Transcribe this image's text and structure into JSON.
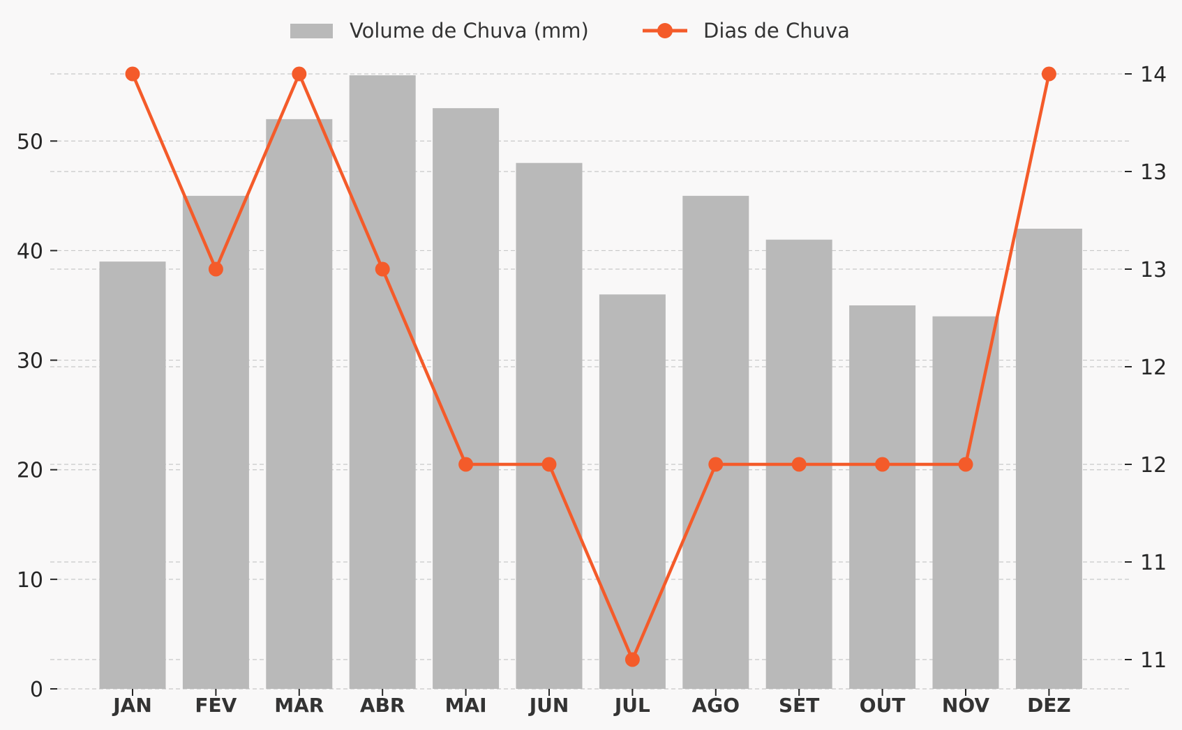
{
  "chart_data": {
    "type": "bar",
    "categories": [
      "JAN",
      "FEV",
      "MAR",
      "ABR",
      "MAI",
      "JUN",
      "JUL",
      "AGO",
      "SET",
      "OUT",
      "NOV",
      "DEZ"
    ],
    "series": [
      {
        "name": "Volume de Chuva (mm)",
        "type": "bar",
        "axis": "left",
        "values": [
          39,
          45,
          52,
          56,
          53,
          48,
          36,
          45,
          41,
          35,
          34,
          42
        ]
      },
      {
        "name": "Dias de Chuva",
        "type": "line",
        "axis": "right",
        "values": [
          14,
          13,
          14,
          13,
          12,
          12,
          11,
          12,
          12,
          12,
          12,
          14
        ]
      }
    ],
    "y_left": {
      "ylim": [
        0,
        56
      ],
      "ticks": [
        0,
        10,
        20,
        30,
        40,
        50
      ]
    },
    "y_right": {
      "ylim": [
        10.85,
        14
      ],
      "tick_values": [
        11.0,
        11.5,
        12.0,
        12.5,
        13.0,
        13.5,
        14.0
      ],
      "tick_labels": [
        "11",
        "11",
        "12",
        "12",
        "13",
        "13",
        "14"
      ]
    },
    "xlabel": "",
    "ylabel": "",
    "grid": true,
    "legend_position": "top-center",
    "colors": {
      "bar": "#b9b9b9",
      "line": "#f45b2a",
      "grid": "#c8c8c8",
      "background": "#f9f8f8",
      "text": "#262626"
    }
  }
}
